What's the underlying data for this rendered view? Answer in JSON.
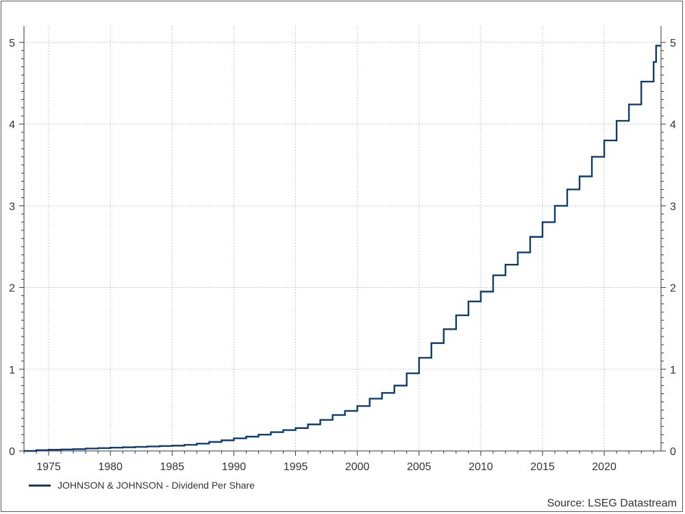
{
  "chart_data": {
    "type": "line",
    "step": true,
    "title": "",
    "xlabel": "",
    "ylabel": "",
    "xlim": [
      1973,
      2024.6
    ],
    "ylim": [
      0,
      5.2
    ],
    "x_ticks": [
      1975,
      1980,
      1985,
      1990,
      1995,
      2000,
      2005,
      2010,
      2015,
      2020
    ],
    "y_ticks": [
      0,
      1,
      2,
      3,
      4,
      5
    ],
    "grid": true,
    "legend_position": "bottom-left",
    "series": [
      {
        "name": "JOHNSON & JOHNSON - Dividend Per Share",
        "color": "#0f3c6e",
        "points": [
          [
            1973,
            0.0
          ],
          [
            1974,
            0.01
          ],
          [
            1975,
            0.015
          ],
          [
            1976,
            0.018
          ],
          [
            1977,
            0.022
          ],
          [
            1978,
            0.03
          ],
          [
            1979,
            0.035
          ],
          [
            1980,
            0.04
          ],
          [
            1981,
            0.045
          ],
          [
            1982,
            0.05
          ],
          [
            1983,
            0.055
          ],
          [
            1984,
            0.06
          ],
          [
            1985,
            0.065
          ],
          [
            1986,
            0.075
          ],
          [
            1987,
            0.09
          ],
          [
            1988,
            0.11
          ],
          [
            1989,
            0.13
          ],
          [
            1990,
            0.155
          ],
          [
            1991,
            0.175
          ],
          [
            1992,
            0.2
          ],
          [
            1993,
            0.23
          ],
          [
            1994,
            0.255
          ],
          [
            1995,
            0.28
          ],
          [
            1996,
            0.325
          ],
          [
            1997,
            0.38
          ],
          [
            1998,
            0.44
          ],
          [
            1999,
            0.49
          ],
          [
            2000,
            0.55
          ],
          [
            2001,
            0.64
          ],
          [
            2002,
            0.71
          ],
          [
            2003,
            0.8
          ],
          [
            2004,
            0.95
          ],
          [
            2005,
            1.14
          ],
          [
            2006,
            1.32
          ],
          [
            2007,
            1.49
          ],
          [
            2008,
            1.66
          ],
          [
            2009,
            1.83
          ],
          [
            2010,
            1.95
          ],
          [
            2011,
            2.15
          ],
          [
            2012,
            2.28
          ],
          [
            2013,
            2.43
          ],
          [
            2014,
            2.62
          ],
          [
            2015,
            2.8
          ],
          [
            2016,
            3.0
          ],
          [
            2017,
            3.2
          ],
          [
            2018,
            3.36
          ],
          [
            2019,
            3.6
          ],
          [
            2020,
            3.8
          ],
          [
            2021,
            4.04
          ],
          [
            2022,
            4.24
          ],
          [
            2023,
            4.52
          ],
          [
            2024,
            4.76
          ],
          [
            2024.2,
            4.96
          ]
        ]
      }
    ]
  },
  "legend": {
    "label": "JOHNSON & JOHNSON - Dividend Per Share"
  },
  "source": "Source: LSEG Datastream"
}
